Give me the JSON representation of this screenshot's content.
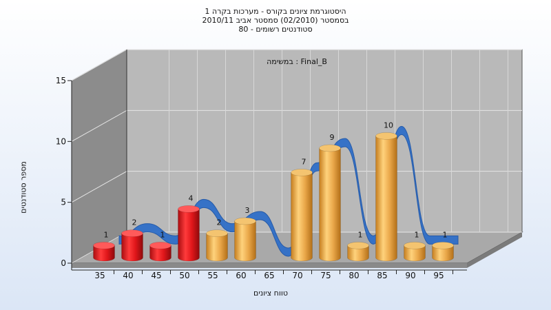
{
  "chart_data": {
    "type": "bar",
    "title": "היסטוגרמת ציונים בקורס - מערכות בקרה 1",
    "subtitle_1": "בסמסטר (02/2010) סמסטר אביב 2010/11",
    "subtitle_2": "סטודנטים רשומים - 80",
    "series_label": "במשימה : Final_B",
    "xlabel": "טווח ציונים",
    "ylabel": "מספר סטודנטים",
    "ylim": [
      0,
      15
    ],
    "y_ticks": [
      "0",
      "5",
      "10",
      "15"
    ],
    "categories": [
      "35",
      "40",
      "45",
      "50",
      "55",
      "60",
      "65",
      "70",
      "75",
      "80",
      "85",
      "90",
      "95"
    ],
    "values": [
      1,
      2,
      1,
      4,
      2,
      3,
      null,
      7,
      9,
      1,
      10,
      1,
      1
    ],
    "value_labels": [
      "1",
      "2",
      "1",
      "4",
      "2",
      "3",
      "",
      "7",
      "9",
      "1",
      "10",
      "1",
      "1"
    ],
    "failing_categories": [
      "35",
      "40",
      "45",
      "50"
    ],
    "grid": true,
    "colors": {
      "fail_bar": "#e0161a",
      "pass_bar": "#e8a53d",
      "curve": "#2f6fc8",
      "wall_back": "#b9b9b9",
      "wall_side": "#8c8c8c",
      "floor": "#a9a9a9"
    }
  }
}
